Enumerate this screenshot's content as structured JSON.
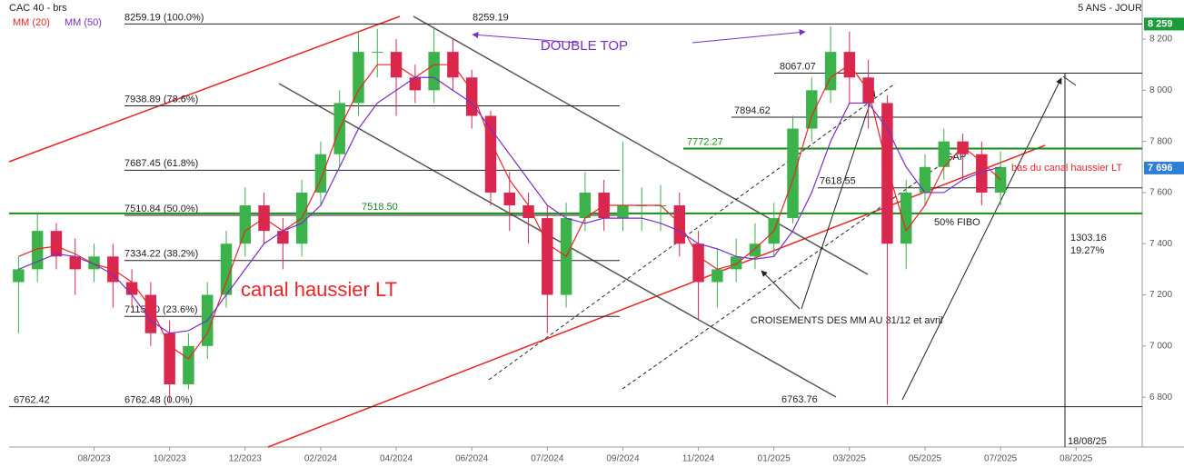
{
  "chart_data": {
    "type": "candlestick",
    "header": {
      "title": "CAC 40 - brs",
      "period": "5 ANS - JOUR"
    },
    "categories": [
      null,
      null,
      null,
      null,
      "08/2023",
      null,
      null,
      null,
      "10/2023",
      null,
      null,
      null,
      "12/2023",
      null,
      null,
      null,
      "02/2024",
      null,
      null,
      null,
      "04/2024",
      null,
      null,
      null,
      "06/2024",
      null,
      null,
      null,
      "07/2024",
      null,
      null,
      null,
      "09/2024",
      null,
      null,
      null,
      "11/2024",
      null,
      null,
      null,
      "01/2025",
      null,
      null,
      null,
      "03/2025",
      null,
      null,
      null,
      "05/2025",
      null,
      null,
      null,
      "07/2025",
      null,
      null,
      null,
      "08/2025",
      null,
      null,
      null
    ],
    "open": [
      7250,
      7300,
      7450,
      7350,
      7300,
      7350,
      7250,
      7200,
      7050,
      6850,
      7000,
      7200,
      7400,
      7550,
      7450,
      7400,
      7600,
      7750,
      7950,
      8150,
      8150,
      8050,
      8000,
      8150,
      8050,
      7900,
      7600,
      7550,
      7500,
      7200,
      7500,
      7600,
      7500,
      7550,
      7550,
      7550,
      7400,
      7250,
      7300,
      7350,
      7400,
      7500,
      7850,
      8000,
      8150,
      8050,
      7950,
      7400,
      7600,
      7700,
      7800,
      7750,
      7600,
      null,
      null,
      null,
      null,
      null,
      null,
      null
    ],
    "high": [
      7350,
      7520,
      7480,
      7420,
      7400,
      7400,
      7300,
      7250,
      7100,
      7050,
      7250,
      7450,
      7620,
      7600,
      7500,
      7650,
      7800,
      8000,
      8230,
      8240,
      8200,
      8100,
      8250,
      8200,
      8080,
      7920,
      7680,
      7600,
      7550,
      7560,
      7680,
      7650,
      7800,
      7620,
      7630,
      7600,
      7450,
      7380,
      7420,
      7480,
      7560,
      7900,
      8050,
      8250,
      8230,
      8120,
      7980,
      7650,
      7750,
      7850,
      7830,
      7800,
      7760,
      null,
      null,
      null,
      null,
      null,
      null,
      null
    ],
    "low": [
      7050,
      7250,
      7300,
      7200,
      7250,
      7150,
      7150,
      7000,
      6780,
      6830,
      6950,
      7150,
      7350,
      7400,
      7300,
      7350,
      7550,
      7700,
      7900,
      8050,
      7900,
      7950,
      7950,
      8000,
      7850,
      7550,
      7450,
      7400,
      7050,
      7150,
      7450,
      7450,
      7450,
      7450,
      7450,
      7350,
      7100,
      7150,
      7250,
      7300,
      7350,
      7480,
      7800,
      7950,
      7950,
      7850,
      6770,
      7300,
      7550,
      7650,
      7650,
      7550,
      7550,
      null,
      null,
      null,
      null,
      null,
      null,
      null
    ],
    "close": [
      7300,
      7450,
      7350,
      7300,
      7350,
      7250,
      7200,
      7050,
      6850,
      7000,
      7200,
      7400,
      7550,
      7450,
      7400,
      7600,
      7750,
      7950,
      8150,
      8150,
      8050,
      8000,
      8150,
      8050,
      7900,
      7600,
      7550,
      7500,
      7200,
      7500,
      7600,
      7500,
      7550,
      7550,
      7550,
      7400,
      7250,
      7300,
      7350,
      7400,
      7500,
      7850,
      8000,
      8150,
      8050,
      7950,
      7400,
      7600,
      7700,
      7800,
      7750,
      7600,
      7700,
      null,
      null,
      null,
      null,
      null,
      null,
      null
    ],
    "up_color": "#3bb34a",
    "down_color": "#d9284f",
    "series": [
      {
        "name": "MM (20)",
        "color": "#e8262a",
        "values": [
          7350,
          7380,
          7390,
          7360,
          7320,
          7300,
          7250,
          7150,
          7000,
          6950,
          7050,
          7250,
          7450,
          7500,
          7450,
          7500,
          7650,
          7850,
          8000,
          8100,
          8100,
          8050,
          8100,
          8100,
          8000,
          7800,
          7650,
          7550,
          7400,
          7350,
          7500,
          7550,
          7550,
          7550,
          7550,
          7480,
          7350,
          7300,
          7320,
          7380,
          7450,
          7650,
          7900,
          8050,
          8100,
          8000,
          7700,
          7450,
          7550,
          7700,
          7780,
          7720,
          7650,
          null,
          null,
          null,
          null,
          null,
          null,
          null
        ]
      },
      {
        "name": "MM (50)",
        "color": "#7a2fc7",
        "values": [
          7300,
          7330,
          7360,
          7350,
          7320,
          7280,
          7200,
          7100,
          7050,
          7060,
          7100,
          7200,
          7300,
          7400,
          7450,
          7480,
          7550,
          7700,
          7850,
          7950,
          8000,
          8050,
          8050,
          8000,
          7950,
          7850,
          7750,
          7650,
          7550,
          7500,
          7480,
          7500,
          7500,
          7500,
          7480,
          7450,
          7400,
          7380,
          7350,
          7340,
          7350,
          7450,
          7600,
          7800,
          7950,
          7950,
          7850,
          7700,
          7600,
          7600,
          7650,
          7680,
          7700,
          null,
          null,
          null,
          null,
          null,
          null,
          null
        ]
      }
    ],
    "ylim": [
      6605,
      8353
    ],
    "yticks": [
      {
        "value": 6800,
        "label": "6 800"
      },
      {
        "value": 7000,
        "label": "7 000"
      },
      {
        "value": 7200,
        "label": "7 200"
      },
      {
        "value": 7400,
        "label": "7 400"
      },
      {
        "value": 7600,
        "label": "7 600"
      },
      {
        "value": 7800,
        "label": "7 800"
      },
      {
        "value": 8000,
        "label": "8 000"
      },
      {
        "value": 8200,
        "label": "8 200"
      }
    ],
    "price_tags": [
      {
        "value": 8259,
        "label": "8 259",
        "color": "#1a9c3a"
      },
      {
        "value": 7696,
        "label": "7 696",
        "color": "#2f7fd6"
      }
    ],
    "levels": [
      {
        "value": 8259.19,
        "label": "8259.19 (100.0%)"
      },
      {
        "value": 7938.89,
        "label": "7938.89 (78.6%)"
      },
      {
        "value": 7687.45,
        "label": "7687.45 (61.8%)"
      },
      {
        "value": 7510.84,
        "label": "7510.84 (50.0%)"
      },
      {
        "value": 7334.22,
        "label": "7334.22 (38.2%)"
      },
      {
        "value": 7115.7,
        "label": "7115.70 (23.6%)"
      },
      {
        "value": 6762.48,
        "label": "6762.48 (0.0%)"
      },
      {
        "value": 8259.19
      },
      {
        "value": 8067.07
      },
      {
        "value": 7894.62
      },
      {
        "value": 7772.27,
        "color": "#1a8a1a"
      },
      {
        "value": 7618.55
      },
      {
        "value": 7518.5,
        "label": "7518.50",
        "color": "#1a8a1a"
      },
      {
        "value": 6763.76
      },
      {
        "value": 6762.42
      }
    ],
    "annotations": {
      "double_top": "DOUBLE TOP",
      "channel": "canal haussier LT",
      "crossings": "CROISEMENTS DES MM AU 31/12 et avril",
      "gap": "GAP",
      "fibo": "50% FIBO",
      "channel_bottom": "bas du canal haussier LT",
      "measure_points": "1303.16",
      "measure_percent": "19.27%",
      "measure_date": "18/08/25"
    }
  }
}
